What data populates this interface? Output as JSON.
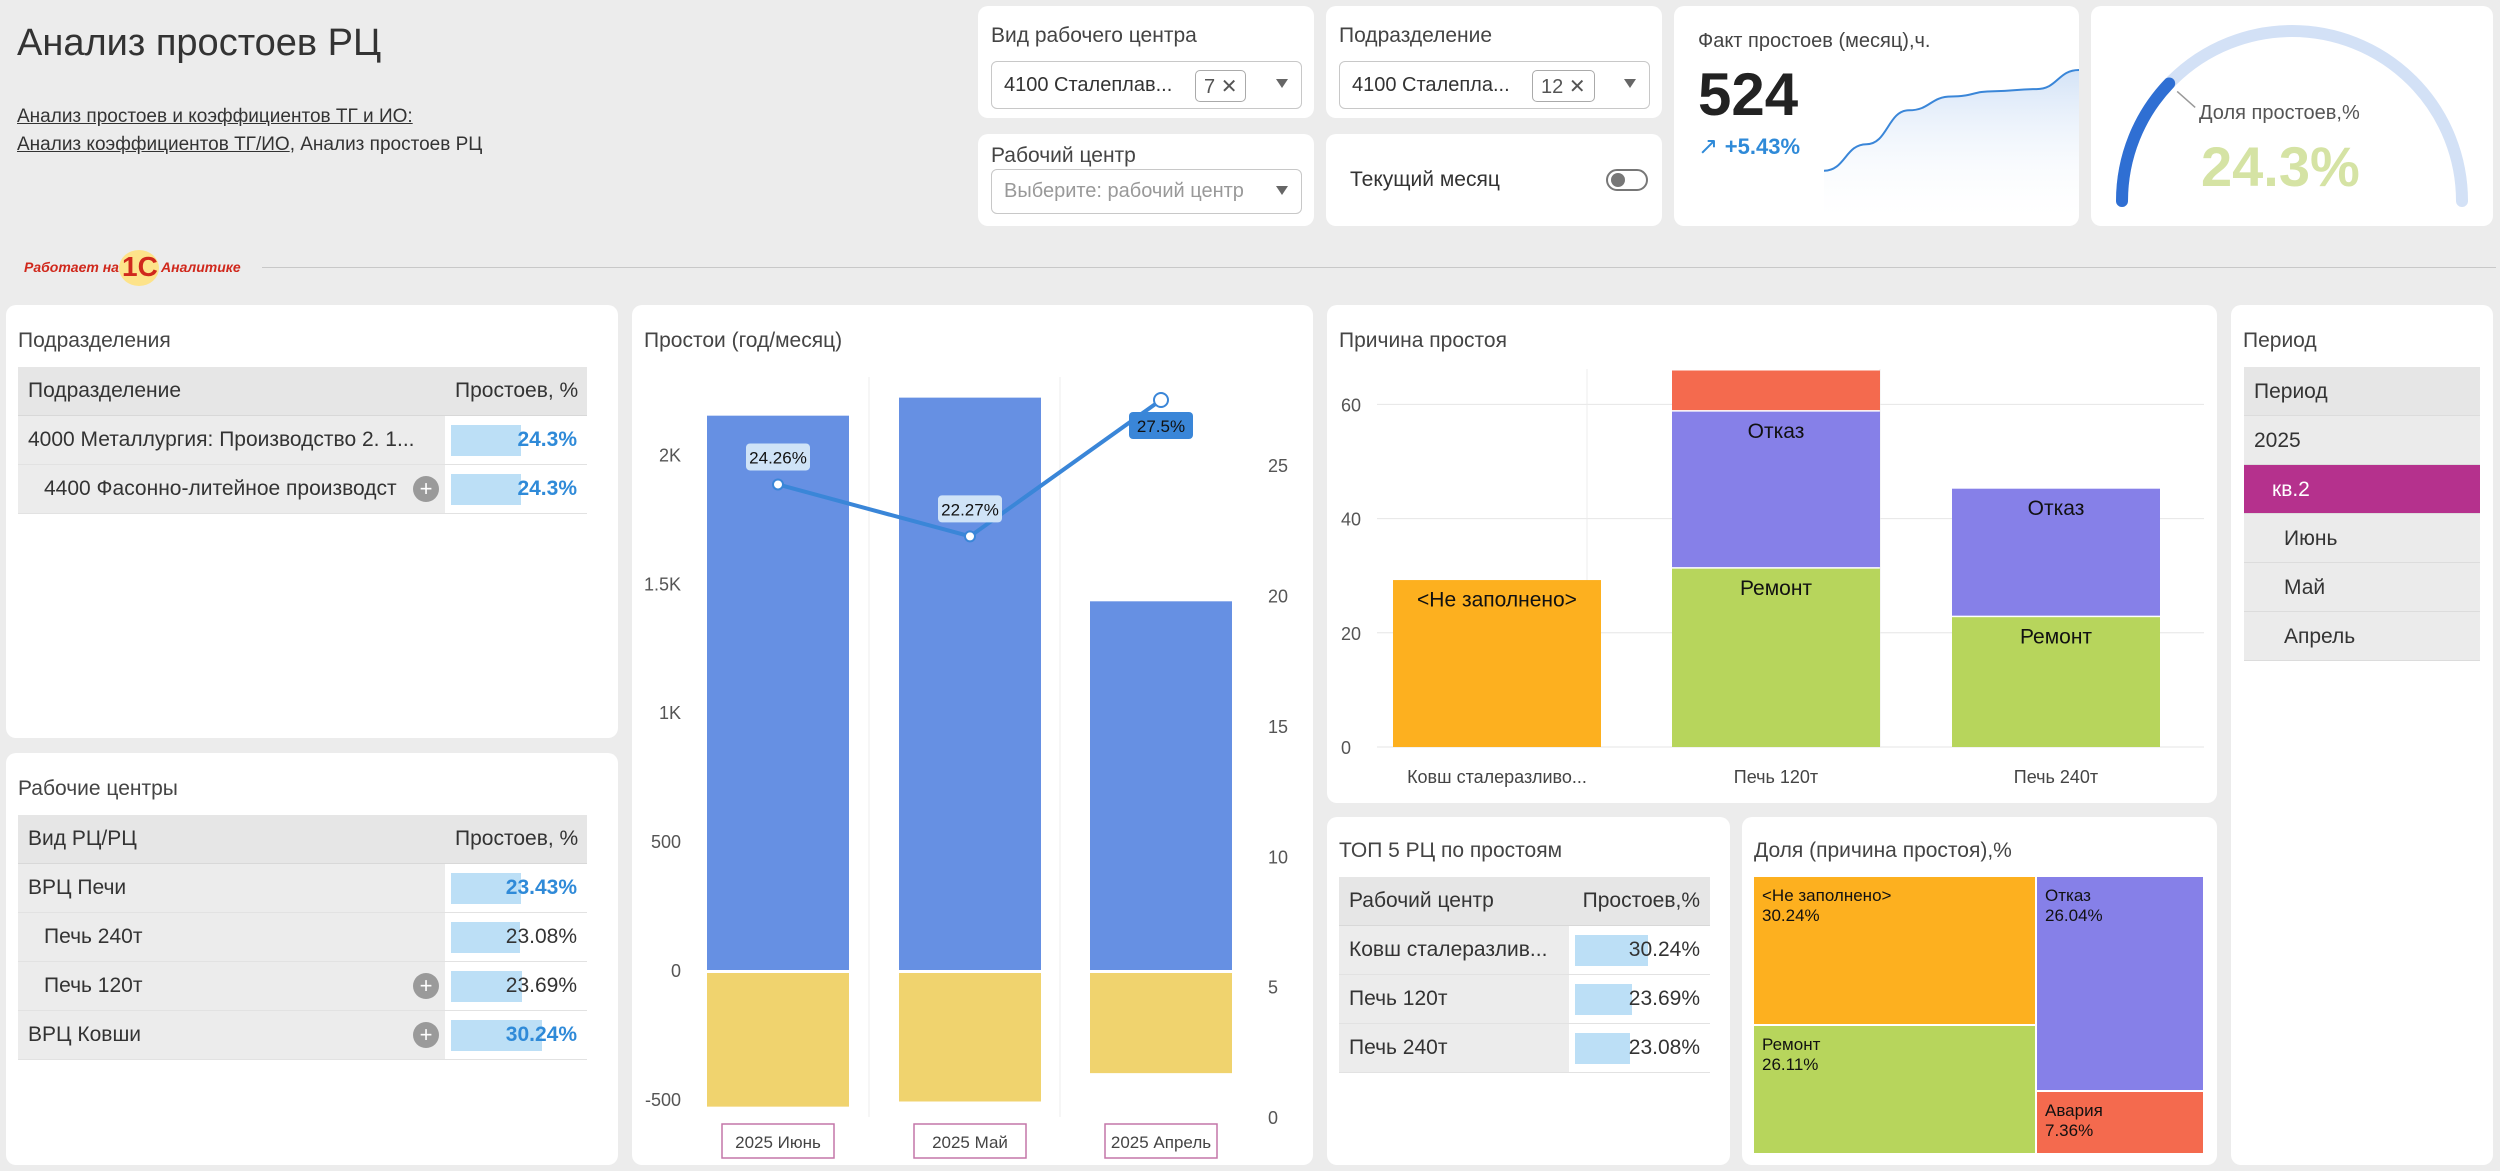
{
  "header": {
    "title": "Анализ простоев РЦ",
    "crumb_link1": "Анализ простоев и коэффициентов ТГ и ИО:",
    "crumb_link2": "Анализ коэффициентов ТГ/ИО",
    "crumb_rest": ", Анализ простоев РЦ",
    "logo_prefix": "Работает на",
    "logo_brand": "1С",
    "logo_suffix": "Аналитике"
  },
  "filters": {
    "wc_type": {
      "label": "Вид рабочего центра",
      "value": "4100 Сталеплав...",
      "count": "7"
    },
    "division": {
      "label": "Подразделение",
      "value": "4100 Сталепла...",
      "count": "12"
    },
    "work_center": {
      "label": "Рабочий центр",
      "placeholder": "Выберите: рабочий центр"
    },
    "current_month": {
      "label": "Текущий месяц",
      "enabled": false
    }
  },
  "kpi": {
    "title": "Факт простоев (месяц),ч.",
    "value": "524",
    "delta": "+5.43%",
    "delta_arrow": "↗",
    "trend": [
      0.05,
      0.3,
      0.62,
      0.75,
      0.8,
      0.82,
      1.0
    ]
  },
  "gauge": {
    "label": "Доля простоев,%",
    "value": "24.3%",
    "fraction": 0.243
  },
  "divisions": {
    "title": "Подразделения",
    "col1": "Подразделение",
    "col2": "Простоев, %",
    "rows": [
      {
        "name": "4000 Металлургия: Производство 2. 1...",
        "pct": "24.3%",
        "frac": 0.243
      },
      {
        "name": "4400 Фасонно-литейное производст",
        "pct": "24.3%",
        "frac": 0.243
      }
    ]
  },
  "workcenters": {
    "title": "Рабочие центры",
    "col1": "Вид РЦ/РЦ",
    "col2": "Простоев, %",
    "rows": [
      {
        "name": "ВРЦ Печи",
        "pct": "23.43%",
        "frac": 0.2343
      },
      {
        "name": "Печь 240т",
        "pct": "23.08%",
        "frac": 0.2308
      },
      {
        "name": "Печь 120т",
        "pct": "23.69%",
        "frac": 0.2369
      },
      {
        "name": "ВРЦ Ковши",
        "pct": "30.24%",
        "frac": 0.3024
      }
    ]
  },
  "top5": {
    "title": "ТОП 5 РЦ по простоям",
    "col1": "Рабочий центр",
    "col2": "Простоев,%",
    "rows": [
      {
        "name": "Ковш сталеразлив...",
        "pct": "30.24%",
        "frac": 0.3024
      },
      {
        "name": "Печь 120т",
        "pct": "23.69%",
        "frac": 0.2369
      },
      {
        "name": "Печь 240т",
        "pct": "23.08%",
        "frac": 0.2308
      }
    ]
  },
  "period": {
    "title": "Период",
    "items": [
      "Период",
      "2025",
      "кв.2",
      "Июнь",
      "Май",
      "Апрель"
    ],
    "selected": "кв.2"
  },
  "colors": {
    "bar_blue": "#6690e3",
    "bar_yellow": "#f0d36e",
    "line_blue": "#3a86d8",
    "orange": "#fdb01f",
    "purple": "#8680e8",
    "green": "#b7d55c",
    "red": "#f46a4e",
    "magenta": "#b5318d",
    "gauge_fill": "#2f6fd3",
    "gauge_track": "#d3e1f6",
    "gauge_text": "#d5e3a4"
  },
  "chart_data": [
    {
      "type": "bar",
      "title": "Простои (год/месяц)",
      "categories": [
        "2025 Июнь",
        "2025 Май",
        "2025 Апрель"
      ],
      "series": [
        {
          "values": [
            2150,
            2220,
            1430
          ]
        },
        {
          "values": [
            -530,
            -510,
            -400
          ]
        },
        {
          "values": [
            24.26,
            22.27,
            27.5
          ]
        }
      ],
      "line_labels": [
        "24.26%",
        "22.27%",
        "27.5%"
      ],
      "yticks_left": [
        "2K",
        "1.5K",
        "1K",
        "500",
        "0",
        "-500"
      ],
      "yticks_right": [
        "25",
        "20",
        "15",
        "10",
        "5",
        "0"
      ],
      "ylim_left": [
        -530,
        2300
      ],
      "ylim_right": [
        0,
        27.5
      ]
    },
    {
      "type": "bar",
      "title": "Причина простоя",
      "categories": [
        "Ковш сталеразливо...",
        "Печь 120т",
        "Печь 240т"
      ],
      "stacks": [
        [
          {
            "label": "<Не заполнено>",
            "value": 29.5,
            "color": "orange"
          }
        ],
        [
          {
            "label": "Ремонт",
            "value": 31.5,
            "color": "green"
          },
          {
            "label": "Отказ",
            "value": 27.5,
            "color": "purple"
          },
          {
            "label": "",
            "value": 7.2,
            "color": "red"
          }
        ],
        [
          {
            "label": "Ремонт",
            "value": 23,
            "color": "green"
          },
          {
            "label": "Отказ",
            "value": 22.5,
            "color": "purple"
          }
        ]
      ],
      "yticks": [
        "60",
        "40",
        "20",
        "0"
      ],
      "ylim": [
        0,
        66.2
      ]
    },
    {
      "type": "heatmap",
      "title": "Доля (причина простоя),%",
      "tiles": [
        {
          "label": "<Не заполнено>",
          "value": "30.24%",
          "color": "orange"
        },
        {
          "label": "Отказ",
          "value": "26.04%",
          "color": "purple"
        },
        {
          "label": "Ремонт",
          "value": "26.11%",
          "color": "green"
        },
        {
          "label": "Авария",
          "value": "7.36%",
          "color": "red"
        }
      ]
    }
  ]
}
